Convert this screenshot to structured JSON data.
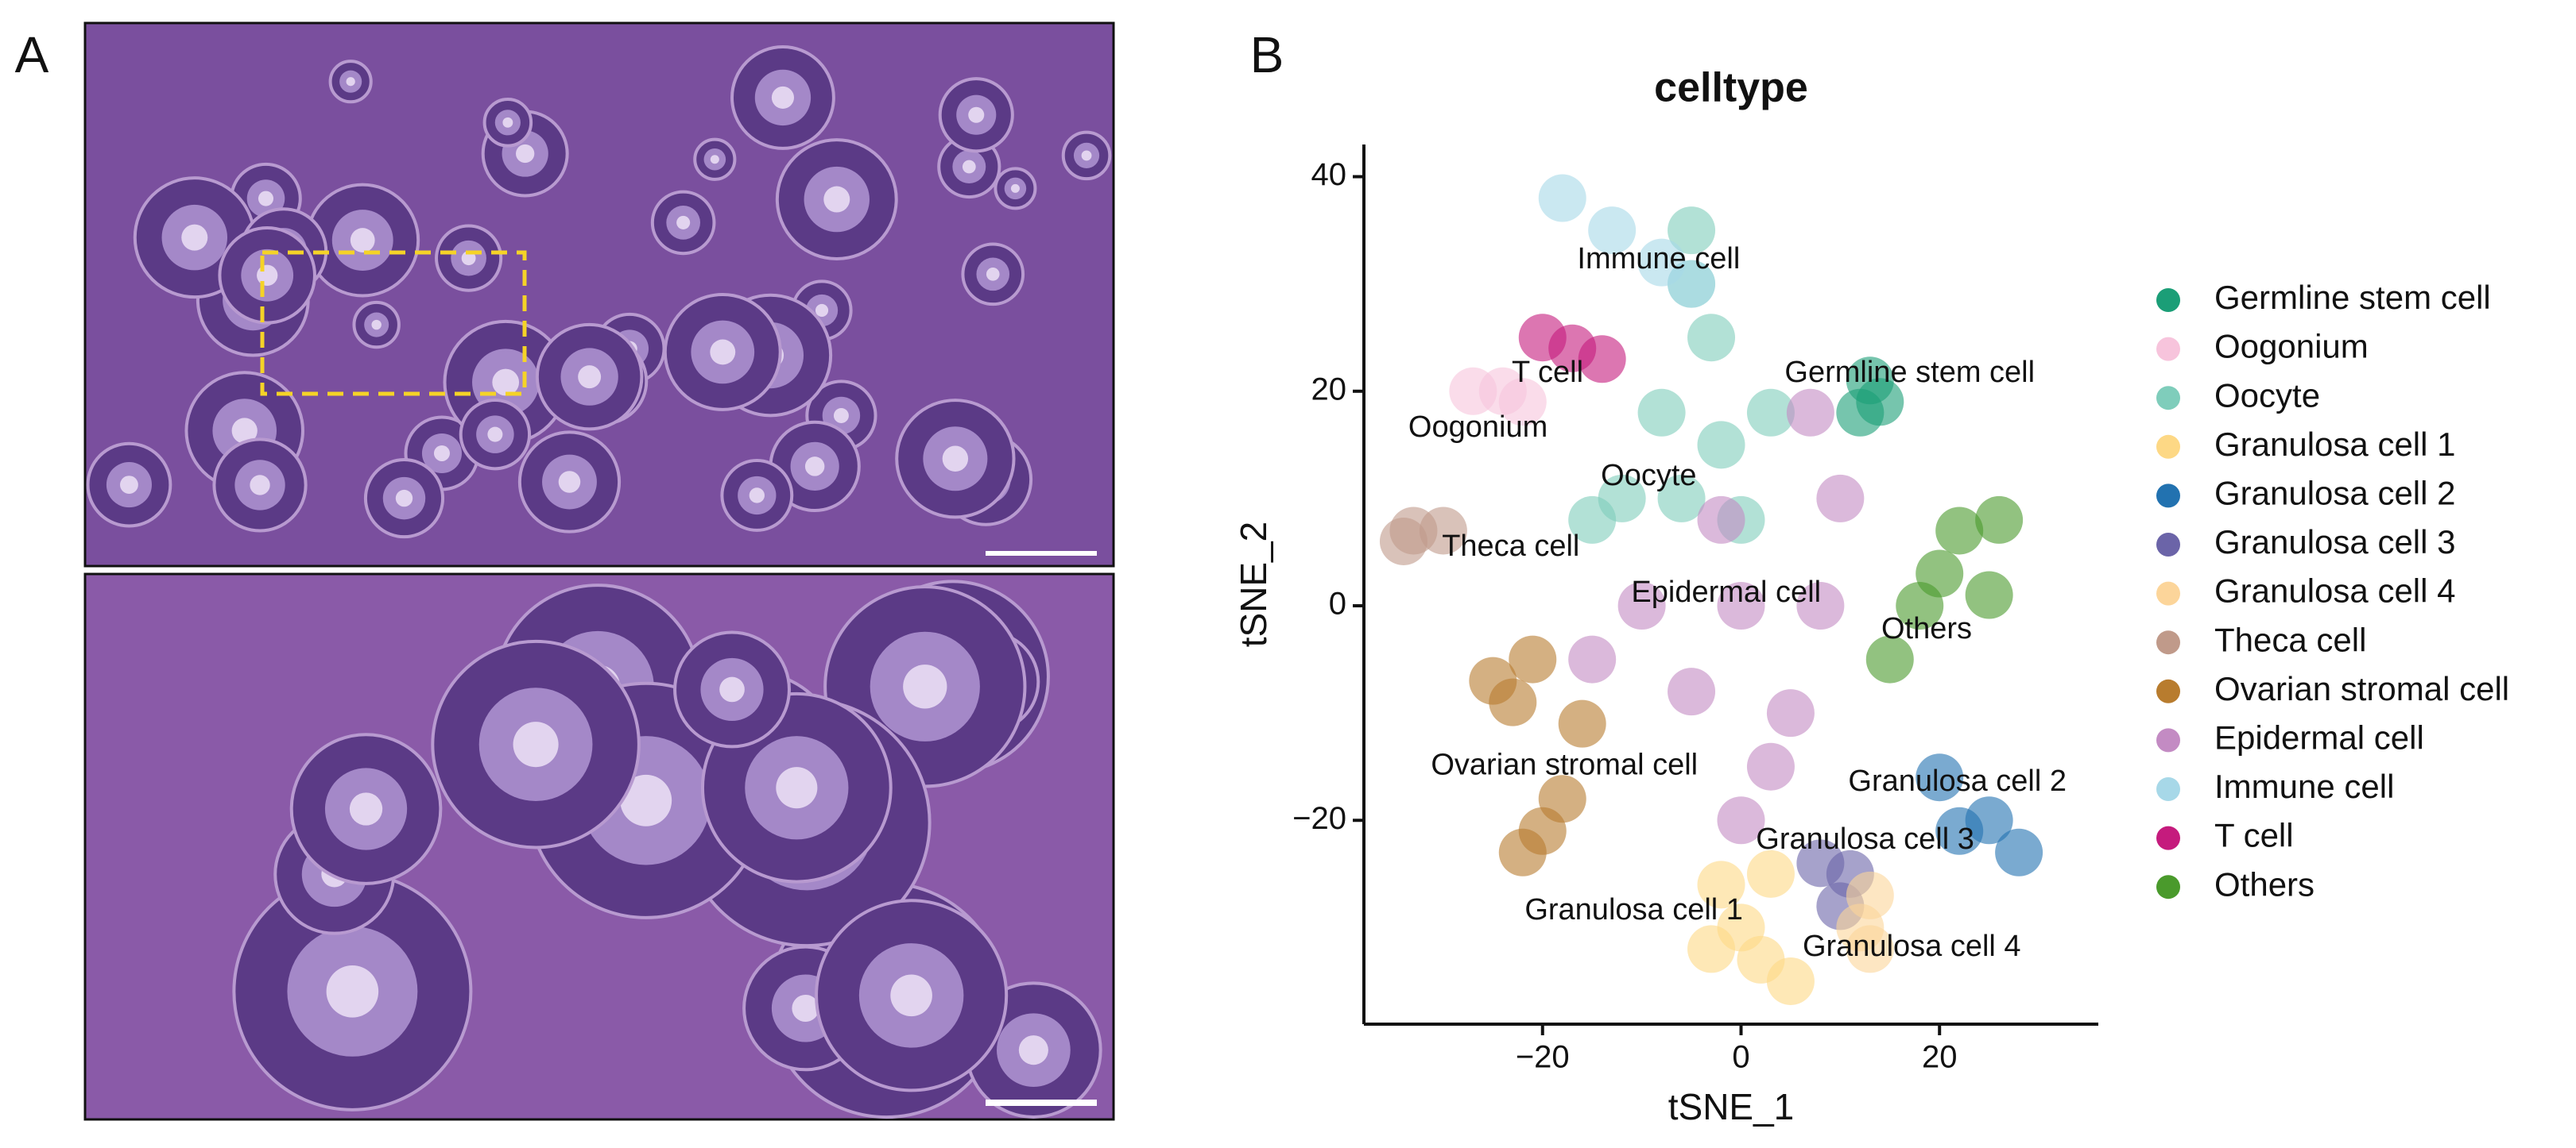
{
  "panels": {
    "a": {
      "label": "A"
    },
    "b": {
      "label": "B"
    }
  },
  "chart_data": {
    "type": "scatter",
    "title": "celltype",
    "xlabel": "tSNE_1",
    "ylabel": "tSNE_2",
    "xlim": [
      -38,
      36
    ],
    "ylim": [
      -39,
      43
    ],
    "xticks": [
      {
        "value": -20,
        "label": "−20"
      },
      0,
      20
    ],
    "yticks": [
      {
        "value": -20,
        "label": "−20"
      },
      0,
      20,
      40
    ],
    "legend": "right",
    "series": [
      {
        "name": "Germline stem cell",
        "color": "#1b9e77",
        "x": [
          13,
          14,
          12
        ],
        "y": [
          21,
          19,
          18
        ]
      },
      {
        "name": "Oogonium",
        "color": "#f7c4dc",
        "x": [
          -27,
          -24,
          -22
        ],
        "y": [
          20,
          20,
          19
        ]
      },
      {
        "name": "Oocyte",
        "color": "#7fcdbb",
        "x": [
          -5,
          -3,
          -8,
          -2,
          -12,
          0,
          -6,
          3,
          -15,
          -5
        ],
        "y": [
          30,
          25,
          18,
          15,
          10,
          8,
          10,
          18,
          8,
          35
        ]
      },
      {
        "name": "Granulosa cell 1",
        "color": "#fdd885",
        "x": [
          -2,
          3,
          0,
          2,
          5,
          -3
        ],
        "y": [
          -26,
          -25,
          -30,
          -33,
          -35,
          -32
        ]
      },
      {
        "name": "Granulosa cell 2",
        "color": "#2272b0",
        "x": [
          20,
          25,
          28,
          22
        ],
        "y": [
          -16,
          -20,
          -23,
          -21
        ]
      },
      {
        "name": "Granulosa cell 3",
        "color": "#6b64a8",
        "x": [
          8,
          11,
          10
        ],
        "y": [
          -24,
          -25,
          -28
        ]
      },
      {
        "name": "Granulosa cell 4",
        "color": "#fcd59a",
        "x": [
          12,
          13,
          13
        ],
        "y": [
          -30,
          -27,
          -32
        ]
      },
      {
        "name": "Theca cell",
        "color": "#c09a8a",
        "x": [
          -33,
          -30,
          -34
        ],
        "y": [
          7,
          7,
          6
        ]
      },
      {
        "name": "Ovarian stromal cell",
        "color": "#b87c2e",
        "x": [
          -25,
          -23,
          -21,
          -18,
          -20,
          -22,
          -16
        ],
        "y": [
          -7,
          -9,
          -5,
          -18,
          -21,
          -23,
          -11
        ]
      },
      {
        "name": "Epidermal cell",
        "color": "#c38bc3",
        "x": [
          -10,
          0,
          8,
          -5,
          5,
          -2,
          10,
          -15,
          3,
          0,
          7
        ],
        "y": [
          0,
          0,
          0,
          -8,
          -10,
          8,
          10,
          -5,
          -15,
          -20,
          18
        ]
      },
      {
        "name": "Immune cell",
        "color": "#a7d8e8",
        "x": [
          -18,
          -13,
          -8,
          -5
        ],
        "y": [
          38,
          35,
          32,
          30
        ]
      },
      {
        "name": "T cell",
        "color": "#c51b7d",
        "x": [
          -20,
          -17,
          -14
        ],
        "y": [
          25,
          24,
          23
        ]
      },
      {
        "name": "Others",
        "color": "#4a9a2c",
        "x": [
          22,
          26,
          18,
          20,
          15,
          25
        ],
        "y": [
          7,
          8,
          0,
          3,
          -5,
          1
        ]
      }
    ],
    "annotations": [
      {
        "text": "Immune cell",
        "x": -8.3,
        "y": 32.2
      },
      {
        "text": "T cell",
        "x": -19.5,
        "y": 21.6
      },
      {
        "text": "Germline stem cell",
        "x": 17,
        "y": 21.6
      },
      {
        "text": "Oogonium",
        "x": -26.5,
        "y": 16.5
      },
      {
        "text": "Oocyte",
        "x": -9.3,
        "y": 12
      },
      {
        "text": "Theca cell",
        "x": -23.2,
        "y": 5.4
      },
      {
        "text": "Epidermal cell",
        "x": -1.5,
        "y": 1.1
      },
      {
        "text": "Others",
        "x": 18.7,
        "y": -2.3
      },
      {
        "text": "Ovarian stromal cell",
        "x": -17.8,
        "y": -15
      },
      {
        "text": "Granulosa cell 2",
        "x": 21.8,
        "y": -16.5
      },
      {
        "text": "Granulosa cell 3",
        "x": 12.5,
        "y": -21.9
      },
      {
        "text": "Granulosa cell 1",
        "x": -10.8,
        "y": -28.5
      },
      {
        "text": "Granulosa cell 4",
        "x": 17.2,
        "y": -31.9
      }
    ]
  }
}
